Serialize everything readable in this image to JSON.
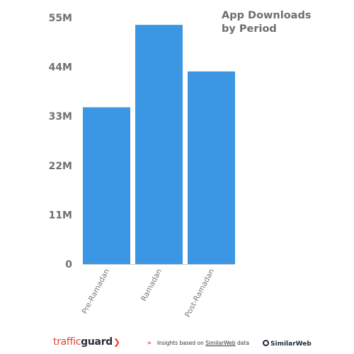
{
  "chart_data": {
    "type": "bar",
    "title": [
      "App Downloads",
      "by Period"
    ],
    "categories": [
      "Pre-Ramadan",
      "Ramadan",
      "Post-Ramadan"
    ],
    "values": [
      35,
      53.4,
      43
    ],
    "ylim": [
      0,
      55
    ],
    "yticks": [
      {
        "value": 0,
        "label": "0"
      },
      {
        "value": 11,
        "label": "11M"
      },
      {
        "value": 22,
        "label": "22M"
      },
      {
        "value": 33,
        "label": "33M"
      },
      {
        "value": 44,
        "label": "44M"
      },
      {
        "value": 55,
        "label": "55M"
      }
    ],
    "bar_color": "#3b97e3",
    "grid": false,
    "xlabel": "",
    "ylabel": ""
  },
  "footer": {
    "logo_light": "traffic",
    "logo_bold": "guard",
    "insights_prefix": "Insights based on ",
    "insights_brand": "SimilarWeb",
    "insights_suffix": " data",
    "similarweb_logo": "SimilarWeb",
    "accent_color": "#e8412c"
  }
}
